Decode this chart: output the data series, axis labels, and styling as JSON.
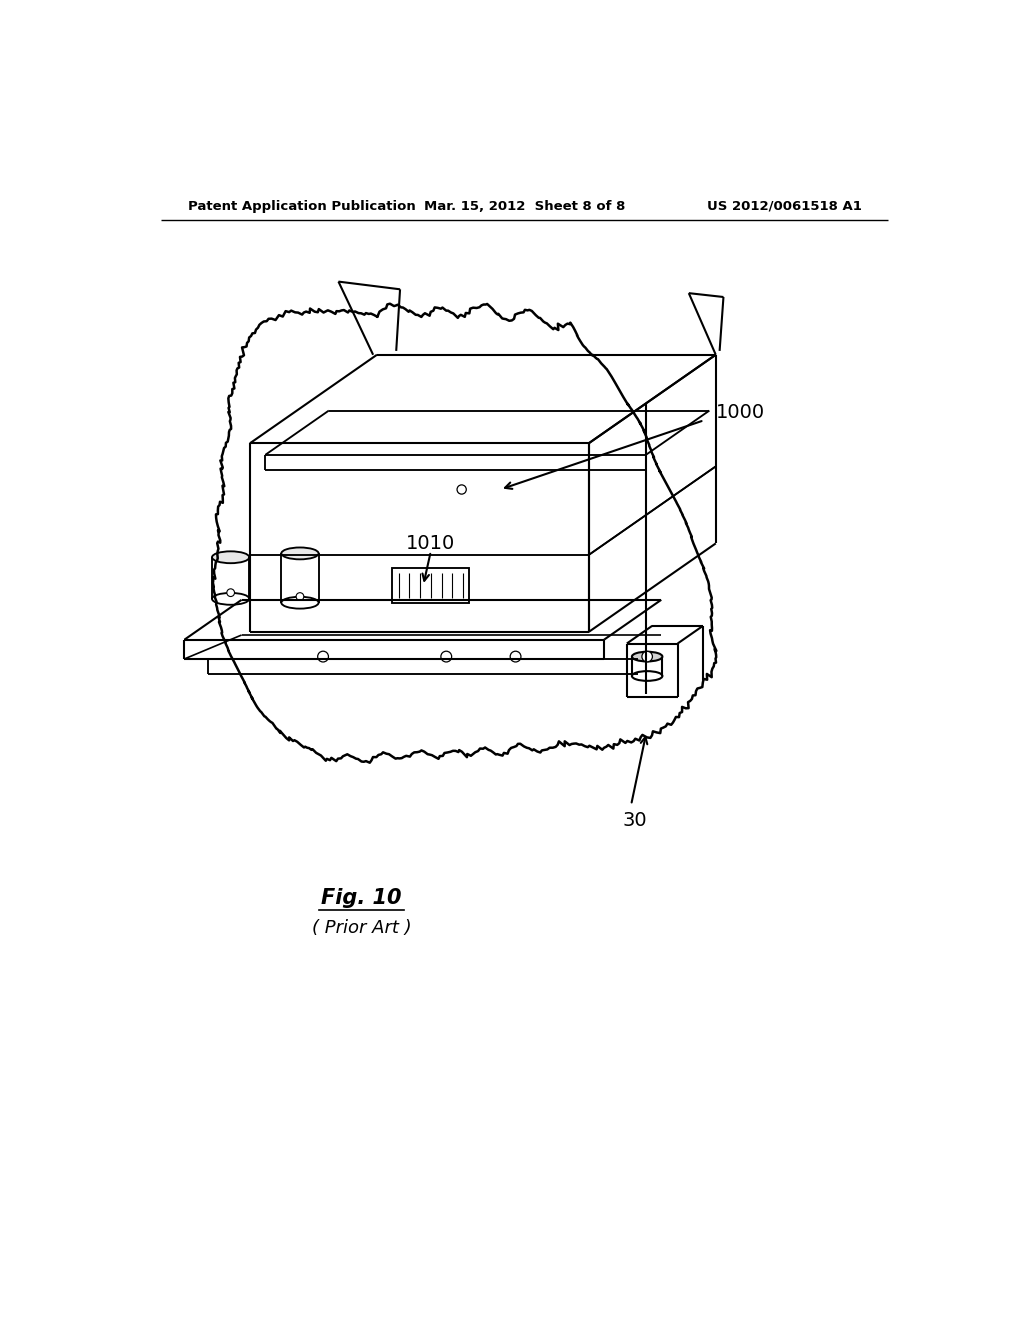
{
  "background_color": "#ffffff",
  "header_left": "Patent Application Publication",
  "header_mid": "Mar. 15, 2012  Sheet 8 of 8",
  "header_right": "US 2012/0061518 A1",
  "header_fontsize": 9.5,
  "label_1000": "1000",
  "label_1010": "1010",
  "label_30": "30",
  "fig_label": "Fig. 10",
  "fig_sub": "( Prior Art )",
  "line_color": "#000000",
  "line_width": 1.5,
  "annotation_fontsize": 13
}
